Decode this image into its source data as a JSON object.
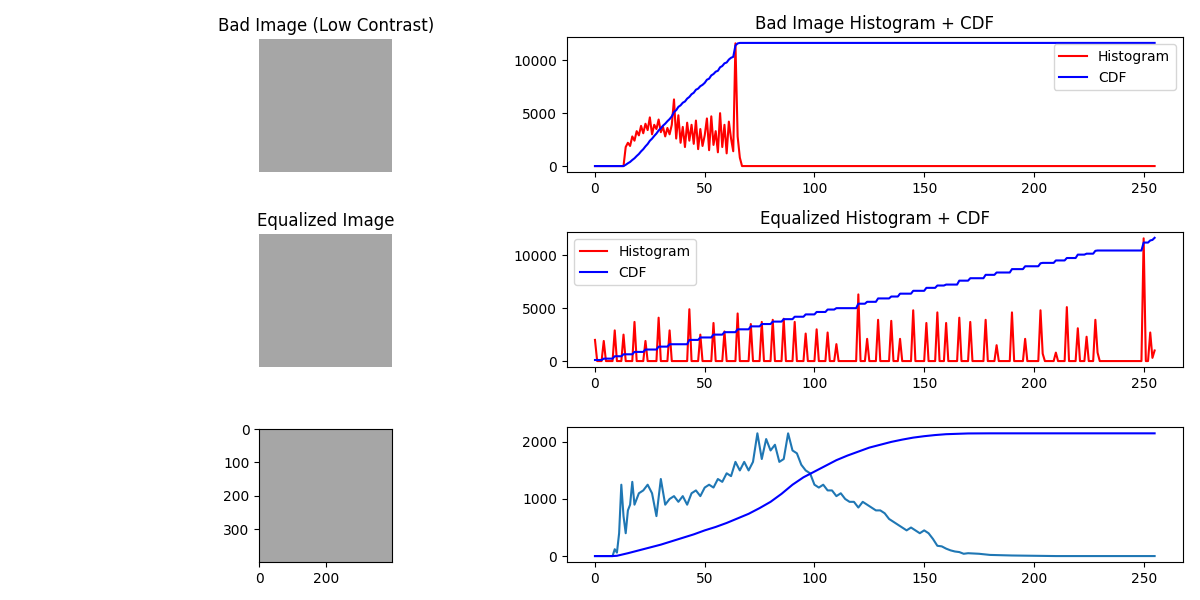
{
  "chart_data": [
    {
      "type": "image",
      "title": "Bad Image (Low Contrast)"
    },
    {
      "type": "line",
      "title": "Bad Image Histogram + CDF",
      "legend": "upper right",
      "x": [
        0,
        13,
        14,
        15,
        16,
        17,
        18,
        19,
        20,
        21,
        22,
        23,
        24,
        25,
        26,
        27,
        28,
        29,
        30,
        31,
        32,
        33,
        34,
        35,
        36,
        37,
        38,
        39,
        40,
        41,
        42,
        43,
        44,
        45,
        46,
        47,
        48,
        49,
        50,
        51,
        52,
        53,
        54,
        55,
        56,
        57,
        58,
        59,
        60,
        61,
        62,
        63,
        64,
        65,
        66,
        67,
        255
      ],
      "series": [
        {
          "name": "Histogram",
          "color": "red",
          "values": [
            0,
            0,
            1800,
            2200,
            1900,
            2800,
            2400,
            3300,
            2900,
            3800,
            3100,
            4000,
            3400,
            4600,
            3000,
            3900,
            3500,
            4400,
            3200,
            3700,
            2800,
            3600,
            3000,
            3900,
            6300,
            2600,
            4800,
            2200,
            3700,
            1800,
            4100,
            2400,
            3900,
            2100,
            4300,
            1600,
            3500,
            1900,
            2900,
            4500,
            1500,
            4700,
            2000,
            3300,
            1300,
            5000,
            1800,
            3900,
            1200,
            4200,
            2600,
            1400,
            11600,
            2800,
            800,
            0,
            0
          ]
        },
        {
          "name": "CDF",
          "color": "blue",
          "values": [
            0,
            0,
            120,
            265,
            390,
            575,
            735,
            950,
            1140,
            1390,
            1595,
            1860,
            2085,
            2390,
            2590,
            2845,
            3075,
            3365,
            3575,
            3820,
            4005,
            4240,
            4440,
            4695,
            5110,
            5280,
            5595,
            5740,
            5985,
            6105,
            6375,
            6535,
            6790,
            6930,
            7215,
            7320,
            7550,
            7675,
            7865,
            8160,
            8260,
            8570,
            8700,
            8920,
            9005,
            9335,
            9455,
            9710,
            9790,
            10065,
            10235,
            10325,
            11400,
            11590,
            11640,
            11640,
            11640
          ]
        }
      ],
      "xlim": [
        -12.75,
        267.75
      ],
      "xticks": [
        0,
        50,
        100,
        150,
        200,
        250
      ],
      "ylim": [
        -580,
        12180
      ],
      "yticks": [
        0,
        5000,
        10000
      ]
    },
    {
      "type": "image",
      "title": "Equalized Image"
    },
    {
      "type": "line",
      "title": "Equalized Histogram + CDF",
      "legend": "upper left",
      "x": [
        0,
        1,
        3,
        4,
        5,
        8,
        9,
        10,
        12,
        13,
        14,
        17,
        18,
        19,
        22,
        23,
        24,
        28,
        29,
        30,
        33,
        34,
        35,
        42,
        43,
        44,
        47,
        48,
        49,
        53,
        54,
        55,
        58,
        59,
        60,
        64,
        65,
        66,
        70,
        71,
        72,
        75,
        76,
        77,
        80,
        81,
        82,
        85,
        86,
        87,
        90,
        91,
        92,
        95,
        96,
        97,
        100,
        101,
        102,
        105,
        106,
        107,
        109,
        110,
        111,
        119,
        120,
        121,
        123,
        124,
        125,
        128,
        129,
        130,
        134,
        135,
        136,
        138,
        139,
        140,
        144,
        145,
        146,
        150,
        151,
        152,
        155,
        156,
        157,
        159,
        160,
        161,
        165,
        166,
        167,
        170,
        171,
        172,
        177,
        178,
        179,
        182,
        183,
        184,
        189,
        190,
        191,
        195,
        196,
        197,
        202,
        203,
        204,
        205,
        209,
        210,
        211,
        214,
        215,
        216,
        219,
        220,
        221,
        223,
        224,
        225,
        227,
        228,
        229,
        230,
        249,
        250,
        251,
        252,
        253,
        254,
        255
      ],
      "series": [
        {
          "name": "Histogram",
          "color": "red",
          "values": [
            2000,
            0,
            0,
            1900,
            0,
            0,
            2900,
            0,
            0,
            2500,
            0,
            0,
            3700,
            0,
            0,
            1900,
            0,
            0,
            4100,
            0,
            0,
            2900,
            0,
            0,
            4900,
            0,
            0,
            2500,
            0,
            0,
            3600,
            0,
            0,
            2800,
            0,
            0,
            4500,
            0,
            0,
            3500,
            0,
            0,
            3700,
            0,
            0,
            3900,
            0,
            0,
            4000,
            0,
            0,
            3700,
            0,
            0,
            2600,
            0,
            0,
            3000,
            0,
            0,
            2700,
            0,
            0,
            1600,
            0,
            0,
            6300,
            0,
            0,
            2100,
            0,
            0,
            3900,
            0,
            0,
            3800,
            0,
            0,
            2100,
            0,
            0,
            4800,
            0,
            0,
            3600,
            0,
            0,
            4600,
            0,
            0,
            3600,
            0,
            0,
            4100,
            0,
            0,
            3700,
            0,
            0,
            3900,
            0,
            0,
            1500,
            0,
            0,
            4600,
            0,
            0,
            2100,
            0,
            0,
            4800,
            700,
            0,
            0,
            800,
            0,
            0,
            5100,
            0,
            0,
            3100,
            0,
            0,
            2300,
            0,
            0,
            3900,
            800,
            0,
            0,
            11600,
            0,
            0,
            2700,
            300,
            1000
          ]
        },
        {
          "name": "CDF",
          "color": "blue",
          "values": [
            100,
            100,
            100,
            230,
            230,
            230,
            455,
            455,
            455,
            640,
            640,
            640,
            865,
            865,
            865,
            1090,
            1090,
            1090,
            1365,
            1365,
            1365,
            1590,
            1590,
            1590,
            2000,
            2000,
            2000,
            2230,
            2230,
            2230,
            2500,
            2500,
            2500,
            2730,
            2730,
            2730,
            3000,
            3000,
            3000,
            3280,
            3280,
            3280,
            3500,
            3500,
            3500,
            3730,
            3730,
            3730,
            3960,
            3960,
            3960,
            4190,
            4190,
            4190,
            4410,
            4410,
            4410,
            4640,
            4640,
            4640,
            4870,
            4870,
            4870,
            5000,
            5000,
            5000,
            5420,
            5420,
            5420,
            5600,
            5600,
            5600,
            5920,
            5920,
            5920,
            6100,
            6100,
            6100,
            6370,
            6370,
            6370,
            6640,
            6640,
            6640,
            6920,
            6920,
            6920,
            7140,
            7140,
            7140,
            7230,
            7230,
            7230,
            7600,
            7600,
            7600,
            7830,
            7830,
            7830,
            8150,
            8150,
            8150,
            8370,
            8370,
            8370,
            8690,
            8690,
            8690,
            8960,
            8960,
            8960,
            9240,
            9280,
            9280,
            9280,
            9510,
            9510,
            9510,
            9740,
            9740,
            9740,
            10060,
            10060,
            10060,
            10150,
            10150,
            10150,
            10420,
            10450,
            10450,
            10450,
            11200,
            11200,
            11200,
            11400,
            11450,
            11650
          ]
        }
      ],
      "xlim": [
        -12.75,
        267.75
      ],
      "xticks": [
        0,
        50,
        100,
        150,
        200,
        250
      ],
      "ylim": [
        -580,
        12180
      ],
      "yticks": [
        0,
        5000,
        10000
      ]
    },
    {
      "type": "image",
      "xlim": [
        -0.5,
        399.5
      ],
      "ylim": [
        399.5,
        -0.5
      ],
      "xticks": [
        0,
        200
      ],
      "yticks": [
        0,
        100,
        200,
        300
      ]
    },
    {
      "type": "line",
      "series": [
        {
          "color": "#1f77b4",
          "x": [
            0,
            8,
            9,
            10,
            11,
            12,
            13,
            14,
            15,
            16,
            17,
            18,
            19,
            20,
            22,
            24,
            26,
            28,
            30,
            32,
            34,
            36,
            38,
            40,
            42,
            44,
            46,
            48,
            50,
            52,
            54,
            56,
            58,
            60,
            62,
            64,
            66,
            68,
            70,
            72,
            74,
            76,
            78,
            80,
            82,
            84,
            86,
            88,
            90,
            92,
            94,
            96,
            98,
            100,
            102,
            104,
            106,
            108,
            110,
            112,
            114,
            116,
            118,
            120,
            122,
            124,
            126,
            128,
            130,
            132,
            134,
            136,
            138,
            140,
            142,
            144,
            146,
            148,
            150,
            152,
            154,
            156,
            158,
            160,
            162,
            164,
            166,
            168,
            170,
            175,
            180,
            190,
            200,
            210,
            220,
            255
          ],
          "values": [
            0,
            0,
            120,
            60,
            400,
            1250,
            700,
            400,
            800,
            900,
            1300,
            900,
            1000,
            1100,
            1150,
            1250,
            1100,
            700,
            1350,
            900,
            1000,
            1050,
            950,
            1050,
            900,
            1100,
            1150,
            1050,
            1200,
            1250,
            1200,
            1350,
            1300,
            1450,
            1400,
            1650,
            1500,
            1650,
            1500,
            1650,
            2150,
            1700,
            2050,
            1850,
            1950,
            1650,
            1700,
            2150,
            1850,
            1800,
            1600,
            1500,
            1450,
            1250,
            1200,
            1250,
            1150,
            1150,
            1050,
            1100,
            1000,
            950,
            950,
            850,
            950,
            900,
            850,
            800,
            800,
            750,
            650,
            600,
            550,
            500,
            450,
            500,
            450,
            400,
            450,
            400,
            300,
            180,
            170,
            130,
            100,
            80,
            70,
            40,
            50,
            40,
            20,
            10,
            5,
            0,
            0,
            0
          ]
        },
        {
          "color": "blue",
          "x": [
            0,
            8,
            10,
            15,
            20,
            25,
            30,
            35,
            40,
            45,
            50,
            55,
            60,
            65,
            70,
            75,
            80,
            85,
            90,
            95,
            100,
            105,
            110,
            115,
            120,
            125,
            130,
            135,
            140,
            145,
            150,
            155,
            160,
            170,
            180,
            255
          ],
          "values": [
            0,
            0,
            5,
            50,
            100,
            150,
            200,
            260,
            320,
            380,
            450,
            510,
            580,
            660,
            740,
            840,
            950,
            1090,
            1250,
            1380,
            1480,
            1580,
            1680,
            1760,
            1830,
            1900,
            1950,
            2000,
            2040,
            2075,
            2100,
            2120,
            2135,
            2148,
            2150,
            2150
          ]
        }
      ],
      "xlim": [
        -12.75,
        267.75
      ],
      "xticks": [
        0,
        50,
        100,
        150,
        200,
        250
      ],
      "ylim": [
        -107.5,
        2257.5
      ],
      "yticks": [
        0,
        1000,
        2000
      ]
    }
  ]
}
